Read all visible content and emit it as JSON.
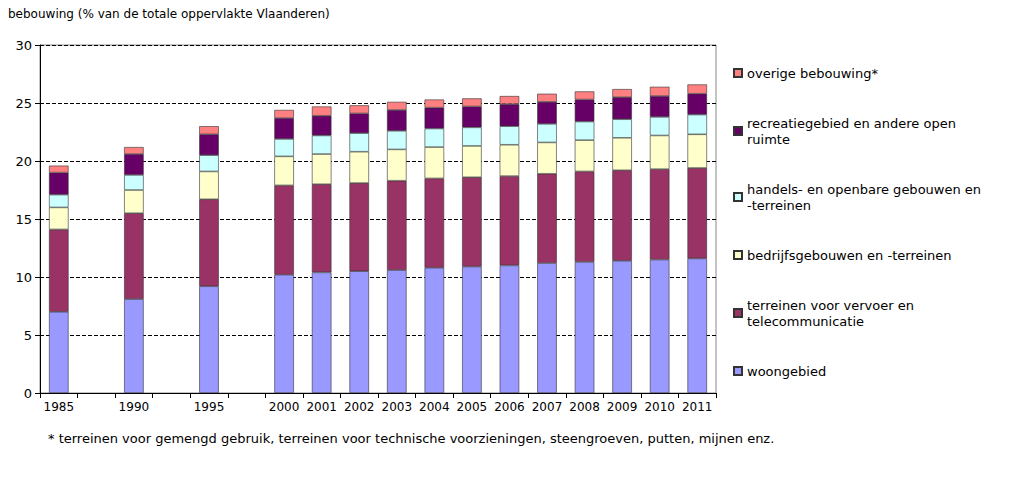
{
  "chart_data": {
    "type": "bar",
    "ylabel": "bebouwing (% van de totale oppervlakte Vlaanderen)",
    "annotations": [
      "* terreinen voor gemengd gebruik, terreinen voor technische voorzieningen, steengroeven, putten, mijnen enz."
    ],
    "categories": [
      "1985",
      null,
      "1990",
      null,
      "1995",
      null,
      "2000",
      "2001",
      "2002",
      "2003",
      "2004",
      "2005",
      "2006",
      "2007",
      "2008",
      "2009",
      "2010",
      "2011"
    ],
    "series": [
      {
        "name": "woongebied",
        "color": "#9999ff",
        "values": [
          7.0,
          null,
          8.1,
          null,
          9.2,
          null,
          10.2,
          10.4,
          10.5,
          10.6,
          10.8,
          10.9,
          11.0,
          11.2,
          11.3,
          11.4,
          11.5,
          11.6
        ]
      },
      {
        "name": "terreinen voor vervoer en telecommunicatie",
        "color": "#993366",
        "values": [
          7.1,
          null,
          7.4,
          null,
          7.5,
          null,
          7.7,
          7.6,
          7.6,
          7.7,
          7.7,
          7.7,
          7.7,
          7.7,
          7.8,
          7.8,
          7.8,
          7.8
        ]
      },
      {
        "name": "bedrijfsgebouwen en -terreinen",
        "color": "#ffffcc",
        "values": [
          1.9,
          null,
          2.0,
          null,
          2.4,
          null,
          2.5,
          2.6,
          2.7,
          2.7,
          2.7,
          2.7,
          2.7,
          2.7,
          2.7,
          2.8,
          2.9,
          2.9
        ]
      },
      {
        "name": "handels- en openbare gebouwen en -terreinen",
        "color": "#ccffff",
        "values": [
          1.1,
          null,
          1.3,
          null,
          1.4,
          null,
          1.5,
          1.6,
          1.6,
          1.6,
          1.6,
          1.6,
          1.6,
          1.6,
          1.6,
          1.6,
          1.6,
          1.7
        ]
      },
      {
        "name": "recreatiegebied en andere open ruimte",
        "color": "#660066",
        "values": [
          1.9,
          null,
          1.8,
          null,
          1.8,
          null,
          1.8,
          1.7,
          1.7,
          1.8,
          1.8,
          1.8,
          1.9,
          1.9,
          1.9,
          1.9,
          1.8,
          1.8
        ]
      },
      {
        "name": "overige bebouwing*",
        "color": "#ff8080",
        "values": [
          0.6,
          null,
          0.6,
          null,
          0.7,
          null,
          0.7,
          0.8,
          0.7,
          0.7,
          0.7,
          0.7,
          0.7,
          0.7,
          0.7,
          0.7,
          0.8,
          0.8
        ]
      }
    ],
    "ylim": [
      0,
      30
    ],
    "yticks": [
      0,
      5,
      10,
      15,
      20,
      25,
      30
    ],
    "stacked": true,
    "grid": true,
    "legend": "right"
  }
}
